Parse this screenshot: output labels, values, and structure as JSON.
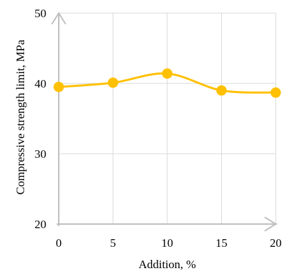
{
  "chart_data": {
    "type": "line",
    "title": "",
    "xlabel": "Addition, %",
    "ylabel": "Compressive strength limit, MPa",
    "x": [
      0,
      5,
      10,
      15,
      20
    ],
    "xticks": [
      "0",
      "5",
      "10",
      "15",
      "20"
    ],
    "yticks": [
      "20",
      "30",
      "40",
      "50"
    ],
    "xlim": [
      0,
      20
    ],
    "ylim": [
      20,
      50
    ],
    "grid": true,
    "smooth": true,
    "legend": "none",
    "series": [
      {
        "values": [
          39.5,
          40.1,
          41.4,
          39.0,
          38.7
        ],
        "color": "#FFC000"
      }
    ],
    "colors": {
      "grid": "#D9D9D9",
      "axis_arrow": "#BFBFBF",
      "line": "#FFC000"
    }
  }
}
